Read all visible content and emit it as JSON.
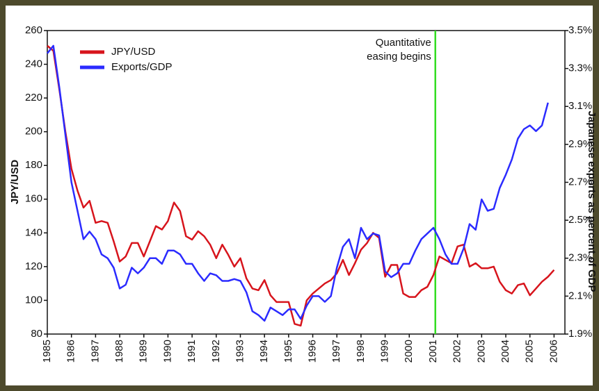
{
  "chart_data": {
    "type": "line",
    "annotations": [
      {
        "text": [
          "Quantitative",
          "easing begins"
        ],
        "x": 2001.08
      }
    ],
    "vline": {
      "x": 2001.08,
      "color": "#33dd22"
    },
    "y_label": "JPY/USD",
    "y2_label": "Japanese exports as percent of GDP",
    "legend": "upper left",
    "x": [
      1985,
      1985.25,
      1985.5,
      1985.75,
      1986,
      1986.25,
      1986.5,
      1986.75,
      1987,
      1987.25,
      1987.5,
      1987.75,
      1988,
      1988.25,
      1988.5,
      1988.75,
      1989,
      1989.25,
      1989.5,
      1989.75,
      1990,
      1990.25,
      1990.5,
      1990.75,
      1991,
      1991.25,
      1991.5,
      1991.75,
      1992,
      1992.25,
      1992.5,
      1992.75,
      1993,
      1993.25,
      1993.5,
      1993.75,
      1994,
      1994.25,
      1994.5,
      1994.75,
      1995,
      1995.25,
      1995.5,
      1995.75,
      1996,
      1996.25,
      1996.5,
      1996.75,
      1997,
      1997.25,
      1997.5,
      1997.75,
      1998,
      1998.25,
      1998.5,
      1998.75,
      1999,
      1999.25,
      1999.5,
      1999.75,
      2000,
      2000.25,
      2000.5,
      2000.75,
      2001,
      2001.25,
      2001.5,
      2001.75,
      2002,
      2002.25,
      2002.5,
      2002.75,
      2003,
      2003.25,
      2003.5,
      2003.75,
      2004,
      2004.25,
      2004.5,
      2004.75,
      2005,
      2005.25,
      2005.5,
      2005.75,
      2006
    ],
    "series": [
      {
        "name": "JPY/USD",
        "color": "#d7141c",
        "values": [
          251,
          248,
          225,
          200,
          178,
          165,
          155,
          159,
          146,
          147,
          146,
          135,
          123,
          126,
          134,
          134,
          126,
          135,
          144,
          142,
          147,
          158,
          153,
          138,
          136,
          141,
          138,
          133,
          125,
          133,
          127,
          120,
          125,
          113,
          107,
          106,
          112,
          103,
          99,
          99,
          99,
          86,
          85,
          100,
          104,
          107,
          110,
          112,
          116,
          124,
          115,
          122,
          130,
          134,
          140,
          137,
          114,
          121,
          121,
          104,
          102,
          102,
          106,
          108,
          115,
          126,
          124,
          122,
          132,
          133,
          120,
          122,
          119,
          119,
          120,
          111,
          106,
          104,
          109,
          110,
          103,
          107,
          111,
          114,
          118
        ]
      },
      {
        "name": "Exports/GDP",
        "color": "#2b2bff",
        "axis": "y2",
        "values": [
          3.38,
          3.42,
          3.2,
          2.95,
          2.7,
          2.55,
          2.4,
          2.44,
          2.4,
          2.32,
          2.3,
          2.25,
          2.14,
          2.16,
          2.25,
          2.22,
          2.25,
          2.3,
          2.3,
          2.27,
          2.34,
          2.34,
          2.32,
          2.27,
          2.27,
          2.22,
          2.18,
          2.22,
          2.21,
          2.18,
          2.18,
          2.19,
          2.18,
          2.12,
          2.02,
          2.0,
          1.97,
          2.04,
          2.02,
          2.0,
          2.03,
          2.03,
          1.98,
          2.05,
          2.1,
          2.1,
          2.07,
          2.1,
          2.25,
          2.36,
          2.4,
          2.3,
          2.46,
          2.4,
          2.43,
          2.42,
          2.23,
          2.2,
          2.22,
          2.27,
          2.27,
          2.34,
          2.4,
          2.43,
          2.46,
          2.4,
          2.32,
          2.27,
          2.27,
          2.35,
          2.48,
          2.45,
          2.61,
          2.55,
          2.56,
          2.67,
          2.74,
          2.82,
          2.93,
          2.98,
          3.0,
          2.97,
          3.0,
          3.12,
          null
        ]
      }
    ],
    "xlim": [
      1985,
      2006.45
    ],
    "xticks": [
      1985,
      1986,
      1987,
      1988,
      1989,
      1990,
      1991,
      1992,
      1993,
      1994,
      1995,
      1996,
      1997,
      1998,
      1999,
      2000,
      2001,
      2002,
      2003,
      2004,
      2005,
      2006
    ],
    "ylim": [
      80,
      260
    ],
    "yticks": [
      80,
      100,
      120,
      140,
      160,
      180,
      200,
      220,
      240,
      260
    ],
    "y2lim": [
      1.9,
      3.5
    ],
    "y2ticks": [
      {
        "value": 1.9,
        "label": "1.9%"
      },
      {
        "value": 2.1,
        "label": "2.1%"
      },
      {
        "value": 2.3,
        "label": "2.3%"
      },
      {
        "value": 2.5,
        "label": "2.5%"
      },
      {
        "value": 2.7,
        "label": "2.7%"
      },
      {
        "value": 2.9,
        "label": "2.9%"
      },
      {
        "value": 3.1,
        "label": "3.1%"
      },
      {
        "value": 3.3,
        "label": "3.3%"
      },
      {
        "value": 3.5,
        "label": "3.5%"
      }
    ]
  }
}
